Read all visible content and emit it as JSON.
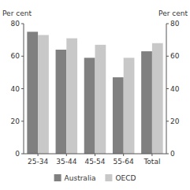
{
  "chart_data": {
    "type": "bar",
    "categories": [
      "25-34",
      "35-44",
      "45-54",
      "55-64",
      "Total"
    ],
    "series": [
      {
        "name": "Australia",
        "color": "#808080",
        "values": [
          75,
          64,
          59,
          47,
          63
        ]
      },
      {
        "name": "OECD",
        "color": "#c8c8c8",
        "values": [
          73,
          71,
          67,
          59,
          68
        ]
      }
    ],
    "ylabel": "Per cent",
    "y2label": "Per cent",
    "ylim": [
      0,
      80
    ],
    "yticks": [
      0,
      20,
      40,
      60,
      80
    ],
    "y2lim": [
      0,
      80
    ],
    "y2ticks": [
      0,
      20,
      40,
      60,
      80
    ],
    "grid": false,
    "legend": "bottom"
  }
}
